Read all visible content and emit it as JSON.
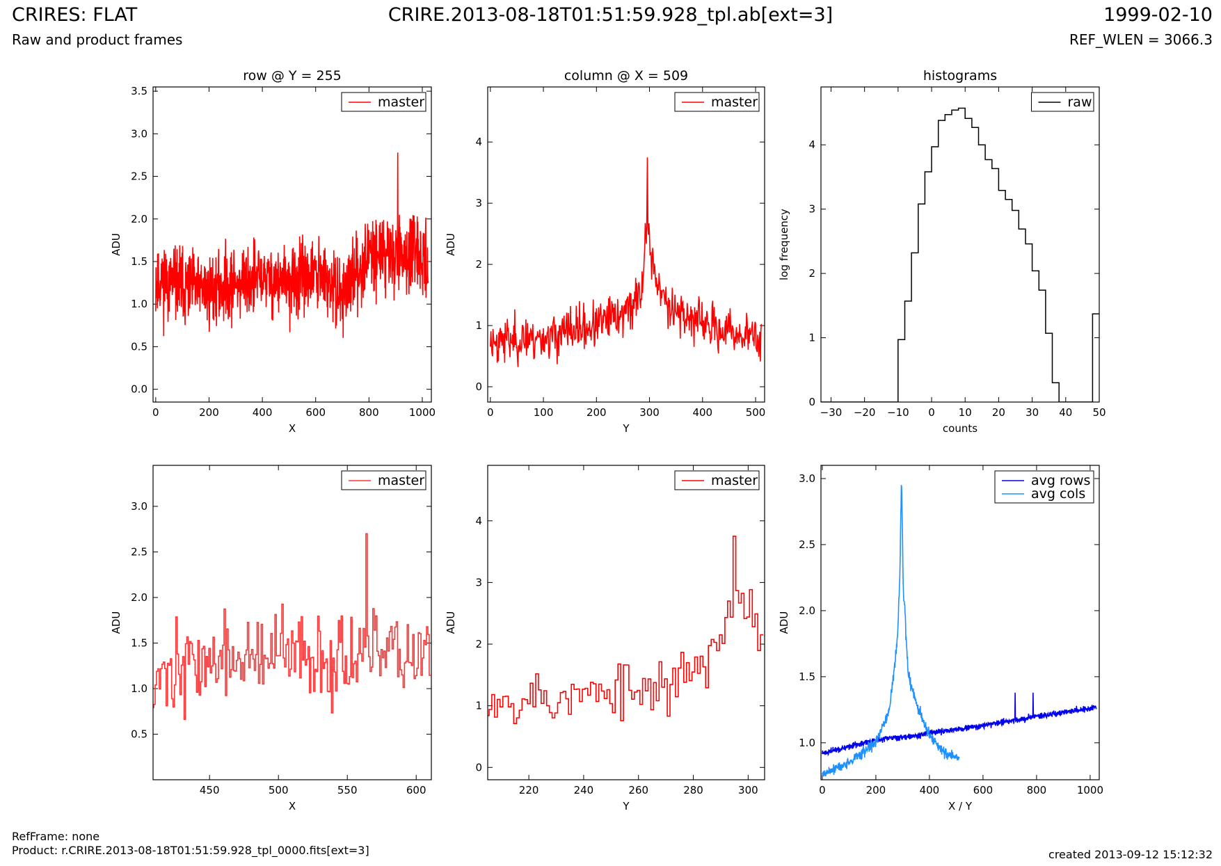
{
  "header": {
    "title_left": "CRIRES: FLAT",
    "subtitle_left": "Raw and product frames",
    "title_center": "CRIRE.2013-08-18T01:51:59.928_tpl.ab[ext=3]",
    "title_right": "1999-02-10",
    "subtitle_right": "REF_WLEN = 3066.3"
  },
  "footer": {
    "refframe": "RefFrame: none",
    "product": "Product: r.CRIRE.2013-08-18T01:51:59.928_tpl_0000.fits[ext=3]",
    "created": "created 2013-09-12 15:12:32"
  },
  "colors": {
    "master": "#ff0000",
    "master_zoom": "#ff3333",
    "raw": "#000000",
    "avg_rows": "#0000ee",
    "avg_cols": "#1e90ff"
  },
  "chart_data": [
    {
      "type": "line",
      "title": "row @ Y = 255",
      "xlabel": "X",
      "ylabel": "ADU",
      "xlim": [
        -10,
        1034
      ],
      "ylim": [
        -0.15,
        3.55
      ],
      "xticks": [
        0,
        200,
        400,
        600,
        800,
        1000
      ],
      "yticks": [
        0.0,
        0.5,
        1.0,
        1.5,
        2.0,
        2.5,
        3.0,
        3.5
      ],
      "ytick_decimals": 1,
      "legend": "top-right",
      "series": [
        {
          "name": "master",
          "color": "#ff0000",
          "style": "line",
          "generator": "row",
          "npts": 1024,
          "x_start": 0,
          "x_step": 1,
          "ymin": 0.1,
          "ymax": 2.78,
          "anchor_points": [
            [
              0,
              1.3
            ],
            [
              100,
              1.2
            ],
            [
              200,
              1.15
            ],
            [
              300,
              1.25
            ],
            [
              400,
              1.3
            ],
            [
              500,
              1.25
            ],
            [
              600,
              1.35
            ],
            [
              700,
              1.1
            ],
            [
              800,
              1.6
            ],
            [
              900,
              1.6
            ],
            [
              1023,
              1.5
            ]
          ]
        }
      ]
    },
    {
      "type": "line",
      "title": "column @ X = 509",
      "xlabel": "Y",
      "ylabel": "ADU",
      "xlim": [
        -5,
        517
      ],
      "ylim": [
        -0.25,
        4.9
      ],
      "xticks": [
        0,
        100,
        200,
        300,
        400,
        500
      ],
      "yticks": [
        0,
        1,
        2,
        3,
        4
      ],
      "ytick_decimals": 0,
      "legend": "top-right",
      "series": [
        {
          "name": "master",
          "color": "#ff0000",
          "style": "line",
          "generator": "column",
          "npts": 512,
          "x_start": 0,
          "x_step": 1,
          "ymin": 0.1,
          "ymax": 3.75,
          "anchor_points": [
            [
              0,
              0.75
            ],
            [
              100,
              0.8
            ],
            [
              200,
              1.0
            ],
            [
              250,
              1.2
            ],
            [
              285,
              1.5
            ],
            [
              295,
              2.8
            ],
            [
              300,
              2.3
            ],
            [
              320,
              1.5
            ],
            [
              360,
              1.2
            ],
            [
              420,
              0.95
            ],
            [
              511,
              0.8
            ]
          ]
        }
      ]
    },
    {
      "type": "histogram",
      "title": "histograms",
      "xlabel": "counts",
      "ylabel": "log frequency",
      "xlim": [
        -33,
        50
      ],
      "ylim": [
        0,
        4.9
      ],
      "xticks": [
        -30,
        -20,
        -10,
        0,
        10,
        20,
        30,
        40,
        50
      ],
      "yticks": [
        0,
        1,
        2,
        3,
        4
      ],
      "ytick_decimals": 0,
      "legend": "top-right",
      "series": [
        {
          "name": "raw",
          "color": "#000000",
          "style": "steps",
          "bin_edges": [
            -10,
            -8,
            -6,
            -4,
            -2,
            0,
            2,
            4,
            6,
            8,
            10,
            12,
            14,
            16,
            18,
            20,
            22,
            24,
            26,
            28,
            30,
            32,
            34,
            36,
            38,
            40
          ],
          "log_counts": [
            0.97,
            1.57,
            2.32,
            3.08,
            3.58,
            3.97,
            4.38,
            4.47,
            4.54,
            4.57,
            4.41,
            4.27,
            4.0,
            3.77,
            3.63,
            3.29,
            3.15,
            2.98,
            2.69,
            2.46,
            2.04,
            1.74,
            1.07,
            0.3,
            0.0
          ],
          "extra_bar": {
            "x0": 48,
            "x1": 50,
            "log_count": 1.37
          }
        }
      ]
    },
    {
      "type": "line",
      "title": "",
      "xlabel": "X",
      "ylabel": "ADU",
      "xlim": [
        409,
        611
      ],
      "ylim": [
        0.0,
        3.45
      ],
      "xticks": [
        450,
        500,
        550,
        600
      ],
      "yticks": [
        0.5,
        1.0,
        1.5,
        2.0,
        2.5,
        3.0
      ],
      "ytick_decimals": 1,
      "legend": "top-right",
      "series": [
        {
          "name": "master",
          "color": "#ff3333",
          "style": "steps",
          "generator": "zoomrow",
          "npts": 202,
          "x_start": 409,
          "x_step": 1,
          "ymin": 0.25,
          "ymax": 2.7,
          "anchor_points": [
            [
              409,
              1.15
            ],
            [
              450,
              1.3
            ],
            [
              500,
              1.35
            ],
            [
              550,
              1.35
            ],
            [
              610,
              1.4
            ]
          ]
        }
      ]
    },
    {
      "type": "line",
      "title": "",
      "xlabel": "Y",
      "ylabel": "ADU",
      "xlim": [
        205,
        306
      ],
      "ylim": [
        -0.2,
        4.9
      ],
      "xticks": [
        220,
        240,
        260,
        280,
        300
      ],
      "yticks": [
        0,
        1,
        2,
        3,
        4
      ],
      "ytick_decimals": 0,
      "legend": "top-right",
      "series": [
        {
          "name": "master",
          "color": "#ff0000",
          "style": "steps",
          "generator": "zoomcol",
          "npts": 101,
          "x_start": 205,
          "x_step": 1,
          "ymin": 0.2,
          "ymax": 3.75,
          "anchor_points": [
            [
              205,
              1.2
            ],
            [
              230,
              1.1
            ],
            [
              250,
              1.2
            ],
            [
              270,
              1.3
            ],
            [
              285,
              1.8
            ],
            [
              298,
              2.8
            ],
            [
              305,
              2.0
            ]
          ]
        }
      ]
    },
    {
      "type": "line",
      "title": "",
      "xlabel": "X / Y",
      "ylabel": "ADU",
      "xlim": [
        -5,
        1034
      ],
      "ylim": [
        0.72,
        3.1
      ],
      "xticks": [
        0,
        200,
        400,
        600,
        800,
        1000
      ],
      "yticks": [
        1.0,
        1.5,
        2.0,
        2.5,
        3.0
      ],
      "ytick_decimals": 1,
      "legend": "top-right",
      "series": [
        {
          "name": "avg rows",
          "color": "#0000ee",
          "style": "line",
          "generator": "avgrows",
          "npts": 1024,
          "x_start": 0,
          "x_step": 1,
          "anchor_points": [
            [
              0,
              0.92
            ],
            [
              200,
              1.02
            ],
            [
              400,
              1.07
            ],
            [
              600,
              1.13
            ],
            [
              800,
              1.2
            ],
            [
              1023,
              1.27
            ]
          ],
          "spikes": [
            [
              720,
              1.38
            ],
            [
              787,
              1.38
            ]
          ]
        },
        {
          "name": "avg cols",
          "color": "#1e90ff",
          "style": "line",
          "generator": "avgcols",
          "npts": 512,
          "x_start": 0,
          "x_step": 1,
          "anchor_points": [
            [
              0,
              0.76
            ],
            [
              100,
              0.85
            ],
            [
              200,
              1.0
            ],
            [
              250,
              1.25
            ],
            [
              280,
              1.75
            ],
            [
              290,
              2.3
            ],
            [
              296,
              3.02
            ],
            [
              302,
              2.2
            ],
            [
              320,
              1.55
            ],
            [
              350,
              1.3
            ],
            [
              400,
              1.05
            ],
            [
              450,
              0.93
            ],
            [
              511,
              0.88
            ]
          ]
        }
      ]
    }
  ]
}
